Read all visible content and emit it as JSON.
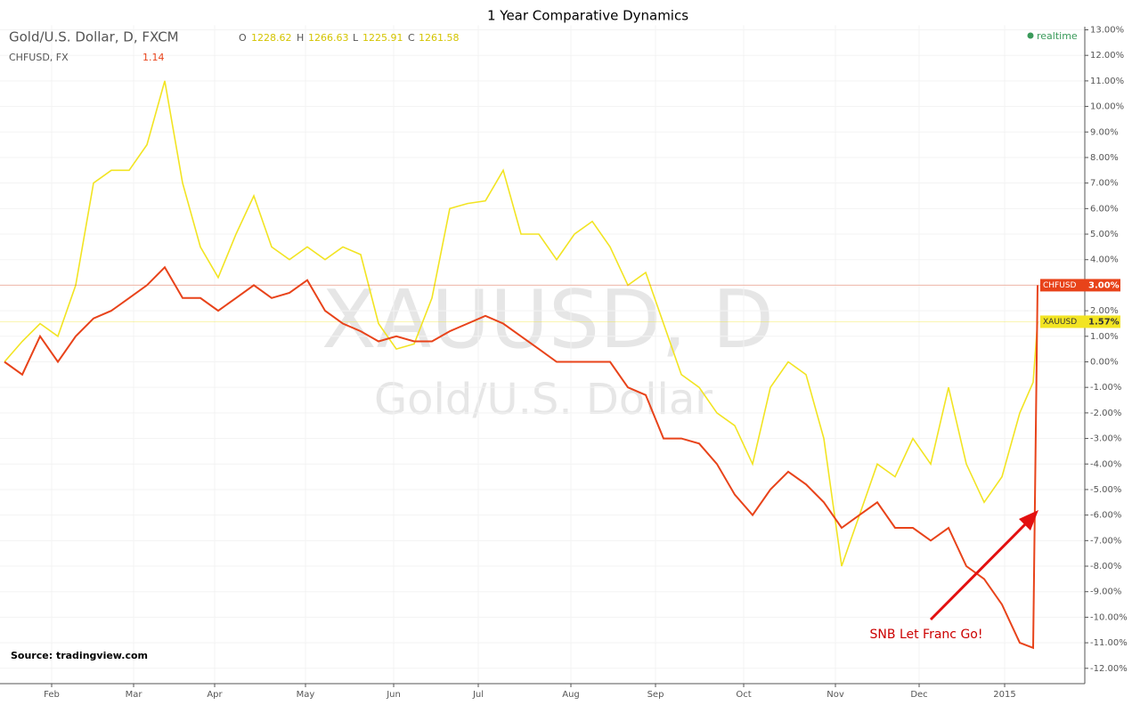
{
  "chart_data": {
    "type": "line",
    "title": "1 Year Comparative Dynamics",
    "legend_header": {
      "symbol": "Gold/U.S. Dollar, D, FXCM",
      "o_key": "O",
      "o": "1228.62",
      "h_key": "H",
      "h": "1266.63",
      "l_key": "L",
      "l": "1225.91",
      "c_key": "C",
      "c": "1261.58",
      "compare": "CHFUSD, FX",
      "compare_value": "1.14"
    },
    "status": "realtime",
    "watermark": "XAUUSD, D",
    "watermark_subtitle": "Gold/U.S. Dollar",
    "source": "Source: tradingview.com",
    "annotation": "SNB Let Franc Go!",
    "grid": true,
    "x": [
      0,
      1,
      2,
      3,
      4,
      5,
      6,
      7,
      8,
      9,
      10,
      11,
      12,
      13,
      14,
      15,
      16,
      17,
      18,
      19,
      20,
      21,
      22,
      23,
      24,
      25,
      26,
      27,
      28,
      29,
      30,
      31,
      32,
      33,
      34,
      35,
      36,
      37,
      38,
      39,
      40,
      41,
      42,
      43,
      44,
      45,
      46,
      47,
      48,
      49,
      50,
      51,
      52,
      53,
      54,
      55,
      56,
      57,
      57.75,
      58
    ],
    "xlim": [
      -0.25,
      60.65
    ],
    "xticks": [
      {
        "value": 2.65,
        "label": "Feb"
      },
      {
        "value": 7.25,
        "label": "Mar"
      },
      {
        "value": 11.8,
        "label": "Apr"
      },
      {
        "value": 16.9,
        "label": "May"
      },
      {
        "value": 21.85,
        "label": "Jun"
      },
      {
        "value": 26.6,
        "label": "Jul"
      },
      {
        "value": 31.8,
        "label": "Aug"
      },
      {
        "value": 36.55,
        "label": "Sep"
      },
      {
        "value": 41.5,
        "label": "Oct"
      },
      {
        "value": 46.65,
        "label": "Nov"
      },
      {
        "value": 51.35,
        "label": "Dec"
      },
      {
        "value": 56.15,
        "label": "2015"
      }
    ],
    "ylim": [
      -12.6,
      13
    ],
    "yticks": [
      {
        "value": 13,
        "label": "13.00%"
      },
      {
        "value": 12,
        "label": "12.00%"
      },
      {
        "value": 11,
        "label": "11.00%"
      },
      {
        "value": 10,
        "label": "10.00%"
      },
      {
        "value": 9,
        "label": "9.00%"
      },
      {
        "value": 8,
        "label": "8.00%"
      },
      {
        "value": 7,
        "label": "7.00%"
      },
      {
        "value": 6,
        "label": "6.00%"
      },
      {
        "value": 5,
        "label": "5.00%"
      },
      {
        "value": 4,
        "label": "4.00%"
      },
      {
        "value": 3,
        "label": "3.00%"
      },
      {
        "value": 2,
        "label": "2.00%"
      },
      {
        "value": 1,
        "label": "1.00%"
      },
      {
        "value": 0,
        "label": "0.00%"
      },
      {
        "value": -1,
        "label": "-1.00%"
      },
      {
        "value": -2,
        "label": "-2.00%"
      },
      {
        "value": -3,
        "label": "-3.00%"
      },
      {
        "value": -4,
        "label": "-4.00%"
      },
      {
        "value": -5,
        "label": "-5.00%"
      },
      {
        "value": -6,
        "label": "-6.00%"
      },
      {
        "value": -7,
        "label": "-7.00%"
      },
      {
        "value": -8,
        "label": "-8.00%"
      },
      {
        "value": -9,
        "label": "-9.00%"
      },
      {
        "value": -10,
        "label": "-10.00%"
      },
      {
        "value": -11,
        "label": "-11.00%"
      },
      {
        "value": -12,
        "label": "-12.00%"
      }
    ],
    "series": [
      {
        "name": "XAUUSD",
        "color": "#f2e423",
        "values": [
          0,
          0.8,
          1.5,
          1,
          3,
          7,
          7.5,
          7.5,
          8.5,
          11,
          7,
          4.5,
          3.3,
          5,
          6.5,
          4.5,
          4,
          4.5,
          4,
          4.5,
          4.2,
          1.5,
          0.5,
          0.7,
          2.5,
          6,
          6.2,
          6.3,
          7.5,
          5,
          5,
          4,
          5,
          5.5,
          4.5,
          3,
          3.5,
          1.5,
          -0.5,
          -1,
          -2,
          -2.5,
          -4,
          -1,
          0,
          -0.5,
          -3,
          -8,
          -6,
          -4,
          -4.5,
          -3,
          -4,
          -1,
          -4,
          -5.5,
          -4.5,
          -2,
          -0.8,
          1.57
        ],
        "value_labels": [
          null,
          null,
          null,
          null,
          null,
          null,
          null,
          null,
          null,
          null,
          null,
          null,
          null,
          null,
          null,
          null,
          null,
          null,
          null,
          null,
          null,
          null,
          null,
          null,
          null,
          null,
          null,
          null,
          null,
          null,
          null,
          null,
          null,
          null,
          null,
          null,
          null,
          null,
          null,
          null,
          null,
          null,
          null,
          null,
          null,
          null,
          null,
          null,
          null,
          null,
          null,
          null,
          null,
          null,
          null,
          null,
          null,
          null,
          null,
          "1.57%"
        ]
      },
      {
        "name": "CHFUSD",
        "color": "#e8431a",
        "values": [
          0,
          -0.5,
          1,
          0,
          1,
          1.7,
          2,
          2.5,
          3,
          3.7,
          2.5,
          2.5,
          2,
          2.5,
          3,
          2.5,
          2.7,
          3.2,
          2,
          1.5,
          1.2,
          0.8,
          1,
          0.8,
          0.8,
          1.2,
          1.5,
          1.8,
          1.5,
          1,
          0.5,
          0,
          0,
          0,
          0,
          -1,
          -1.3,
          -3,
          -3,
          -3.2,
          -4,
          -5.2,
          -6,
          -5,
          -4.3,
          -4.8,
          -5.5,
          -6.5,
          -6,
          -5.5,
          -6.5,
          -6.5,
          -7,
          -6.5,
          -8,
          -8.5,
          -9.5,
          -11,
          -11.2,
          3.0
        ],
        "value_labels": [
          null,
          null,
          null,
          null,
          null,
          null,
          null,
          null,
          null,
          null,
          null,
          null,
          null,
          null,
          null,
          null,
          null,
          null,
          null,
          null,
          null,
          null,
          null,
          null,
          null,
          null,
          null,
          null,
          null,
          null,
          null,
          null,
          null,
          null,
          null,
          null,
          null,
          null,
          null,
          null,
          null,
          null,
          null,
          null,
          null,
          null,
          null,
          null,
          null,
          null,
          null,
          null,
          null,
          null,
          null,
          null,
          null,
          null,
          null,
          "3.00%"
        ]
      }
    ]
  }
}
